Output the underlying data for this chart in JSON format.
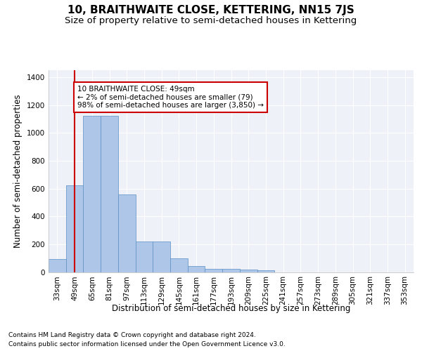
{
  "title": "10, BRAITHWAITE CLOSE, KETTERING, NN15 7JS",
  "subtitle": "Size of property relative to semi-detached houses in Kettering",
  "xlabel": "Distribution of semi-detached houses by size in Kettering",
  "ylabel": "Number of semi-detached properties",
  "categories": [
    "33sqm",
    "49sqm",
    "65sqm",
    "81sqm",
    "97sqm",
    "113sqm",
    "129sqm",
    "145sqm",
    "161sqm",
    "177sqm",
    "193sqm",
    "209sqm",
    "225sqm",
    "241sqm",
    "257sqm",
    "273sqm",
    "289sqm",
    "305sqm",
    "321sqm",
    "337sqm",
    "353sqm"
  ],
  "values": [
    95,
    625,
    1120,
    1120,
    555,
    220,
    220,
    100,
    45,
    25,
    22,
    20,
    13,
    0,
    0,
    0,
    0,
    0,
    0,
    0,
    0
  ],
  "bar_color": "#aec6e8",
  "bar_edge_color": "#5a8fc4",
  "marker_index": 1,
  "marker_color": "#cc0000",
  "annotation_text": "10 BRAITHWAITE CLOSE: 49sqm\n← 2% of semi-detached houses are smaller (79)\n98% of semi-detached houses are larger (3,850) →",
  "annotation_box_color": "#ffffff",
  "annotation_box_edge": "#cc0000",
  "ylim": [
    0,
    1450
  ],
  "yticks": [
    0,
    200,
    400,
    600,
    800,
    1000,
    1200,
    1400
  ],
  "footer_line1": "Contains HM Land Registry data © Crown copyright and database right 2024.",
  "footer_line2": "Contains public sector information licensed under the Open Government Licence v3.0.",
  "bg_color": "#eef2f8",
  "title_fontsize": 11,
  "subtitle_fontsize": 9.5,
  "label_fontsize": 8.5,
  "tick_fontsize": 7.5,
  "footer_fontsize": 6.5
}
